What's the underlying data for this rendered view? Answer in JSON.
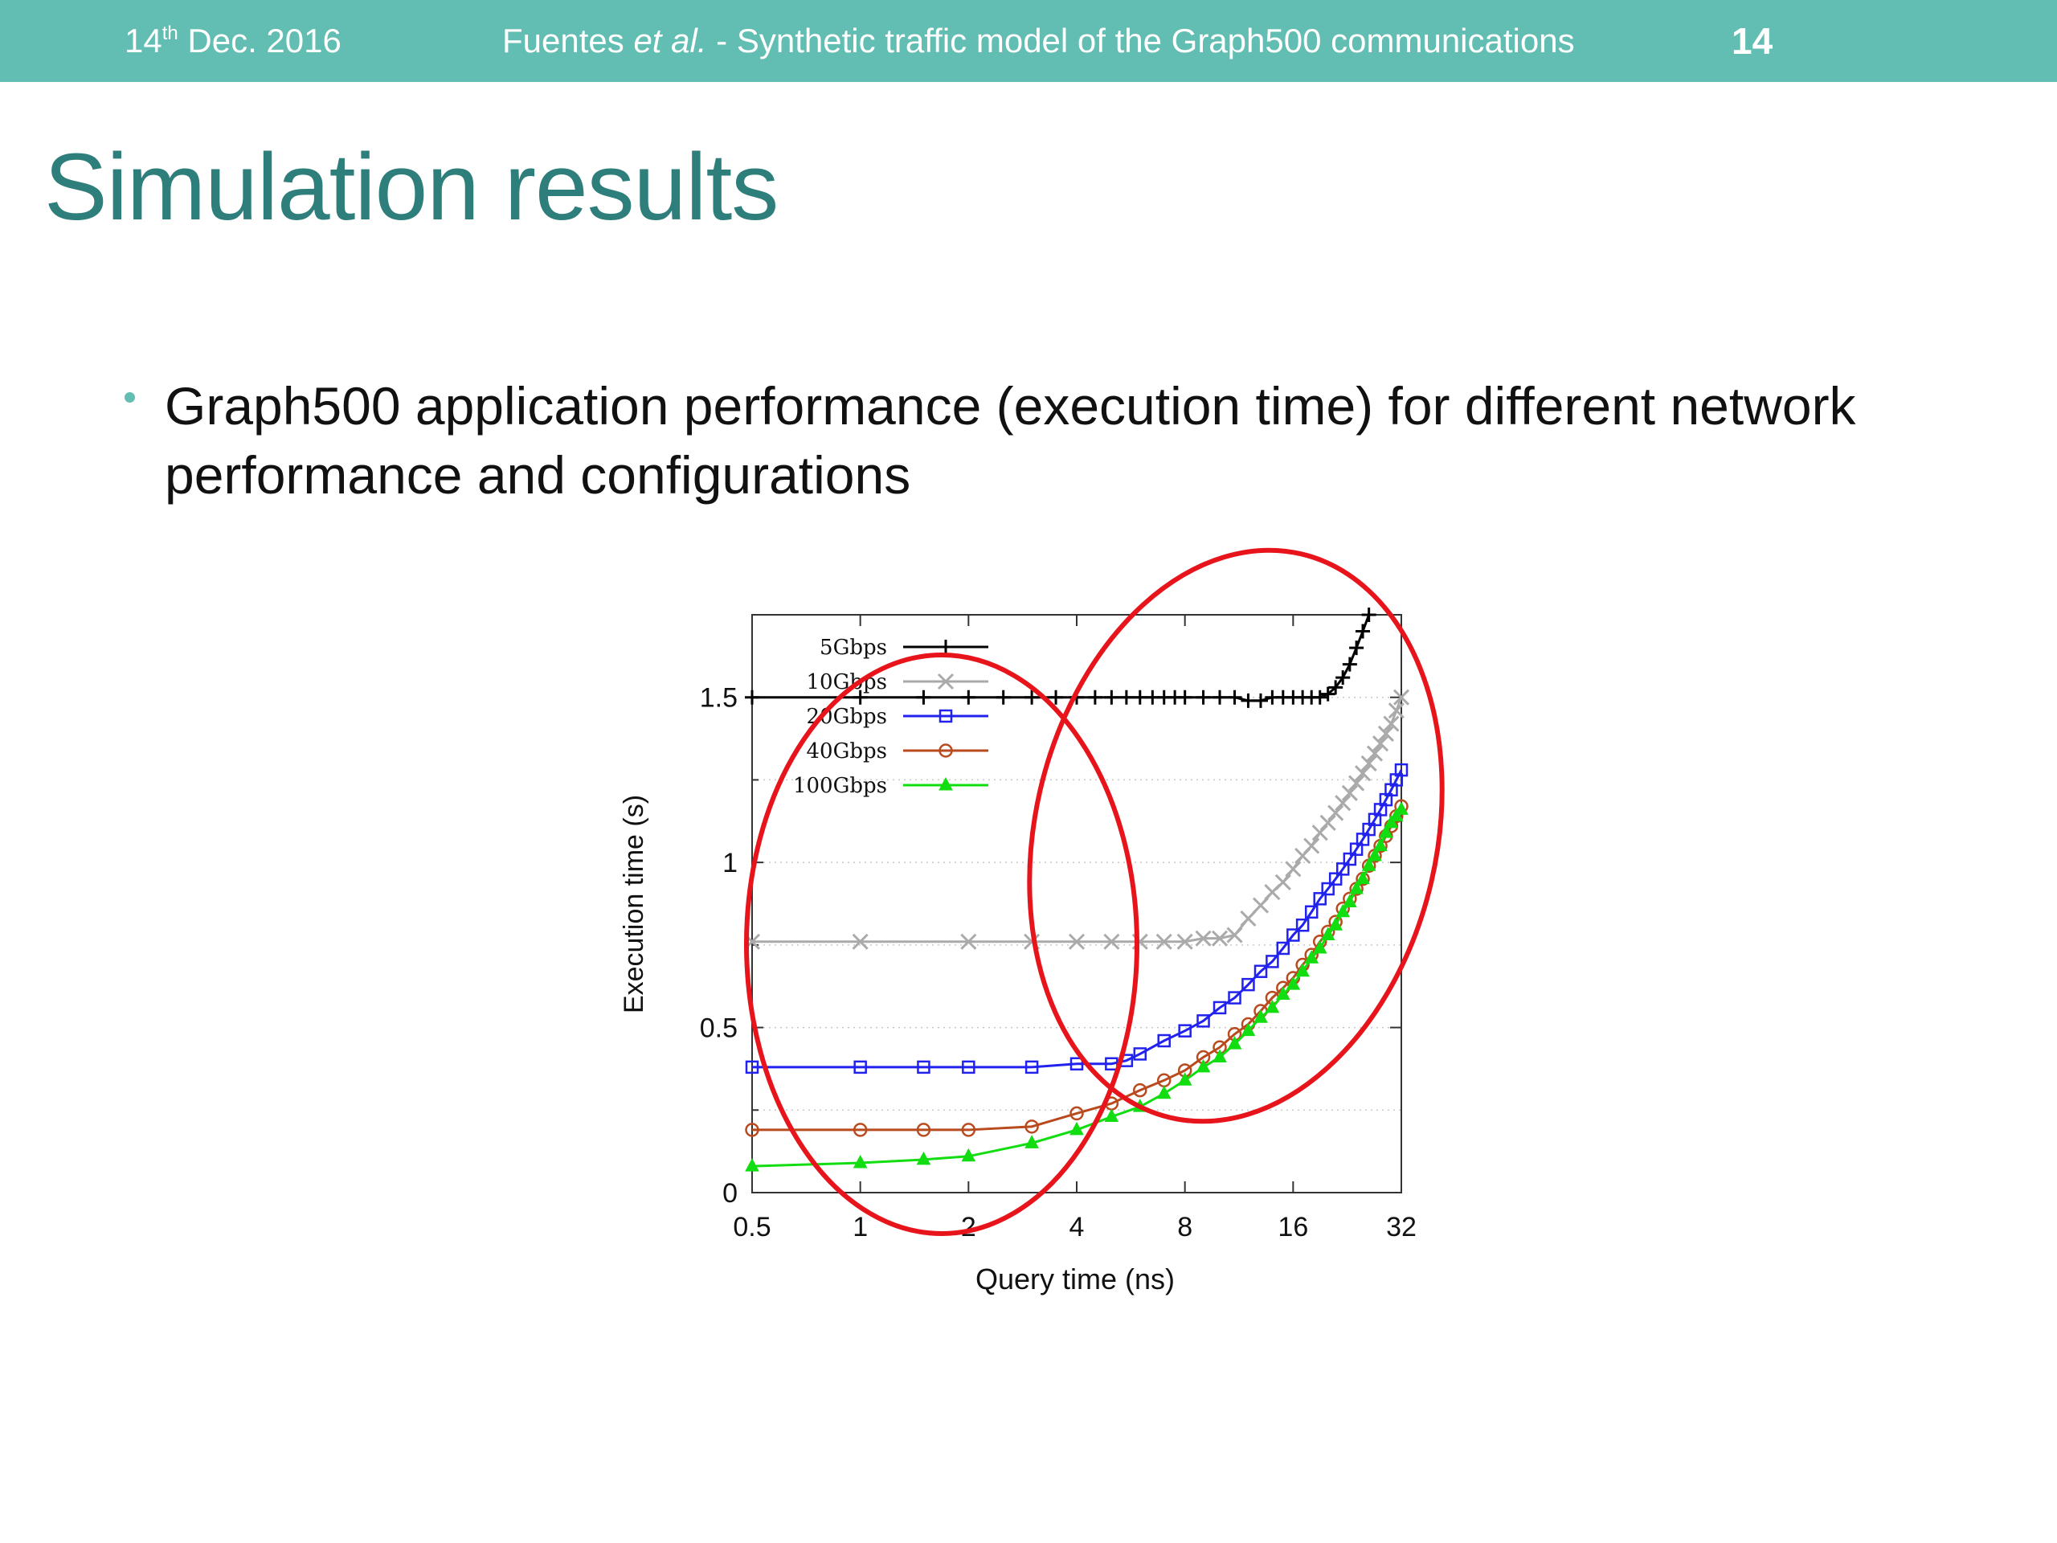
{
  "header": {
    "date_day": "14",
    "date_sup": "th",
    "date_rest": " Dec. 2016",
    "authors_prefix": "Fuentes ",
    "authors_italic": "et al.",
    "authors_suffix": " - Synthetic traffic model of the Graph500 communications",
    "page_number": "14"
  },
  "slide": {
    "title": "Simulation results",
    "bullet": "Graph500 application performance (execution time) for different network performance and configurations"
  },
  "colors": {
    "header_bg": "#62bdb2",
    "title": "#2e7e7c",
    "highlight_ellipse": "#e8141b"
  },
  "chart_data": {
    "type": "line",
    "xlabel": "Query time (ns)",
    "ylabel": "Execution time (s)",
    "x_scale": "log2",
    "xlim": [
      0.5,
      32
    ],
    "ylim": [
      0,
      1.75
    ],
    "x_ticks": [
      0.5,
      1,
      2,
      4,
      8,
      16,
      32
    ],
    "x_tick_labels": [
      "0.5",
      "1",
      "2",
      "4",
      "8",
      "16",
      "32"
    ],
    "y_ticks": [
      0,
      0.5,
      1,
      1.5
    ],
    "y_tick_labels": [
      "0",
      "0.5",
      "1",
      "1.5"
    ],
    "grid": "dotted horizontal",
    "legend_position": "top-left",
    "series": [
      {
        "name": "5Gbps",
        "color": "#000000",
        "marker": "plus",
        "x": [
          0.5,
          1,
          1.5,
          2,
          2.5,
          3,
          3.5,
          4,
          4.5,
          5,
          5.5,
          6,
          6.5,
          7,
          7.5,
          8,
          9,
          10,
          11,
          12,
          13,
          14,
          15,
          16,
          17,
          18,
          19,
          20,
          21,
          22,
          23,
          24,
          25,
          26
        ],
        "y": [
          1.5,
          1.5,
          1.5,
          1.5,
          1.5,
          1.5,
          1.5,
          1.5,
          1.5,
          1.5,
          1.5,
          1.5,
          1.5,
          1.5,
          1.5,
          1.5,
          1.5,
          1.5,
          1.5,
          1.49,
          1.49,
          1.5,
          1.5,
          1.5,
          1.5,
          1.5,
          1.5,
          1.51,
          1.53,
          1.56,
          1.6,
          1.65,
          1.7,
          1.75
        ]
      },
      {
        "name": "10Gbps",
        "color": "#aaaaaa",
        "marker": "cross",
        "x": [
          0.5,
          1,
          2,
          3,
          4,
          5,
          6,
          7,
          8,
          9,
          10,
          11,
          12,
          13,
          14,
          15,
          16,
          17,
          18,
          19,
          20,
          21,
          22,
          23,
          24,
          25,
          26,
          27,
          28,
          29,
          30,
          31,
          32
        ],
        "y": [
          0.76,
          0.76,
          0.76,
          0.76,
          0.76,
          0.76,
          0.76,
          0.76,
          0.76,
          0.77,
          0.77,
          0.78,
          0.83,
          0.87,
          0.91,
          0.94,
          0.98,
          1.02,
          1.05,
          1.09,
          1.12,
          1.15,
          1.18,
          1.21,
          1.24,
          1.27,
          1.3,
          1.33,
          1.36,
          1.39,
          1.42,
          1.46,
          1.5
        ]
      },
      {
        "name": "20Gbps",
        "color": "#2222ee",
        "marker": "square",
        "x": [
          0.5,
          1,
          1.5,
          2,
          3,
          4,
          5,
          5.5,
          6,
          7,
          8,
          9,
          10,
          11,
          12,
          13,
          14,
          15,
          16,
          17,
          18,
          19,
          20,
          21,
          22,
          23,
          24,
          25,
          26,
          27,
          28,
          29,
          30,
          31,
          32
        ],
        "y": [
          0.38,
          0.38,
          0.38,
          0.38,
          0.38,
          0.39,
          0.39,
          0.4,
          0.42,
          0.46,
          0.49,
          0.52,
          0.56,
          0.59,
          0.63,
          0.67,
          0.7,
          0.74,
          0.78,
          0.81,
          0.85,
          0.89,
          0.92,
          0.95,
          0.98,
          1.01,
          1.04,
          1.07,
          1.1,
          1.13,
          1.16,
          1.19,
          1.22,
          1.25,
          1.28
        ]
      },
      {
        "name": "40Gbps",
        "color": "#b84a1e",
        "marker": "circle",
        "x": [
          0.5,
          1,
          1.5,
          2,
          3,
          4,
          5,
          6,
          7,
          8,
          9,
          10,
          11,
          12,
          13,
          14,
          15,
          16,
          17,
          18,
          19,
          20,
          21,
          22,
          23,
          24,
          25,
          26,
          27,
          28,
          29,
          30,
          31,
          32
        ],
        "y": [
          0.19,
          0.19,
          0.19,
          0.19,
          0.2,
          0.24,
          0.27,
          0.31,
          0.34,
          0.37,
          0.41,
          0.44,
          0.48,
          0.51,
          0.55,
          0.59,
          0.62,
          0.65,
          0.69,
          0.72,
          0.76,
          0.79,
          0.82,
          0.86,
          0.89,
          0.92,
          0.95,
          0.99,
          1.02,
          1.05,
          1.08,
          1.11,
          1.14,
          1.17
        ]
      },
      {
        "name": "100Gbps",
        "color": "#11dd11",
        "marker": "triangle",
        "x": [
          0.5,
          1,
          1.5,
          2,
          3,
          4,
          5,
          6,
          7,
          8,
          9,
          10,
          11,
          12,
          13,
          14,
          15,
          16,
          17,
          18,
          19,
          20,
          21,
          22,
          23,
          24,
          25,
          26,
          27,
          28,
          29,
          30,
          31,
          32
        ],
        "y": [
          0.08,
          0.09,
          0.1,
          0.11,
          0.15,
          0.19,
          0.23,
          0.26,
          0.3,
          0.34,
          0.38,
          0.41,
          0.45,
          0.49,
          0.53,
          0.56,
          0.6,
          0.63,
          0.67,
          0.71,
          0.74,
          0.78,
          0.81,
          0.85,
          0.88,
          0.92,
          0.95,
          0.99,
          1.02,
          1.05,
          1.09,
          1.12,
          1.14,
          1.16
        ]
      }
    ]
  }
}
